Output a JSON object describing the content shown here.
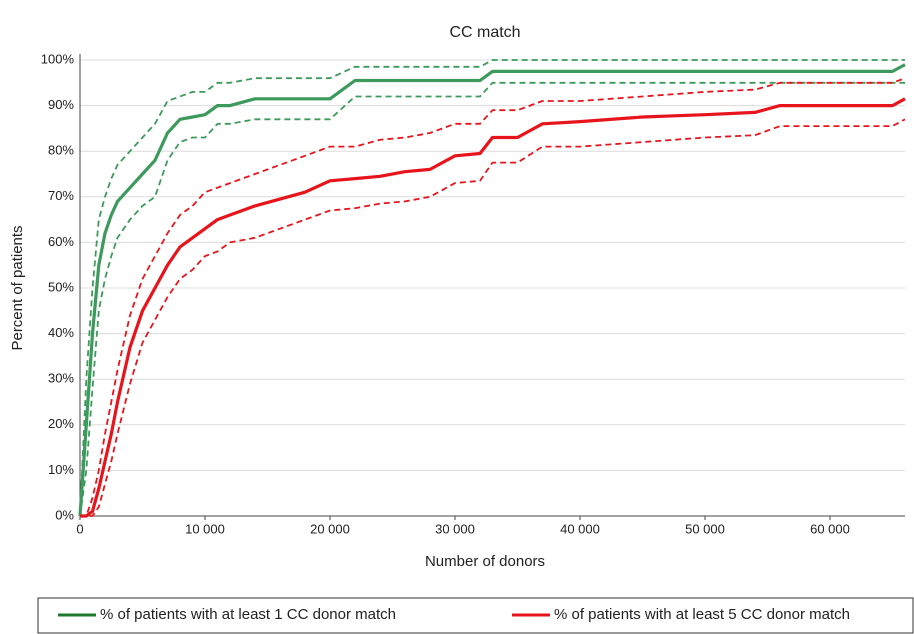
{
  "chart_data": {
    "type": "line",
    "title": "CC match",
    "x_label": "Number of donors",
    "y_label": "Percent of patients",
    "x": [
      0,
      500,
      1000,
      1500,
      2000,
      2500,
      3000,
      4000,
      5000,
      6000,
      7000,
      8000,
      9000,
      10000,
      11000,
      12000,
      14000,
      16000,
      18000,
      20000,
      22000,
      24000,
      26000,
      28000,
      30000,
      32000,
      33000,
      35000,
      37000,
      40000,
      45000,
      50000,
      54000,
      56000,
      60000,
      65000,
      66000
    ],
    "series": [
      {
        "name": "% of patients with at least 1 CC donor match",
        "color": "#3c9a5c",
        "legend_color": "#1f7a2c",
        "values": [
          0,
          20,
          40,
          55,
          62,
          66,
          69,
          72,
          75,
          78,
          84,
          87,
          87.5,
          88,
          90,
          90,
          91.5,
          91.5,
          91.5,
          91.5,
          95.5,
          95.5,
          95.5,
          95.5,
          95.5,
          95.5,
          97.5,
          97.5,
          97.5,
          97.5,
          97.5,
          97.5,
          97.5,
          97.5,
          97.5,
          97.5,
          99
        ],
        "upper": [
          0,
          30,
          50,
          65,
          70,
          74,
          77,
          80,
          83,
          86,
          91,
          92,
          93,
          93,
          95,
          95,
          96,
          96,
          96,
          96,
          98.5,
          98.5,
          98.5,
          98.5,
          98.5,
          98.5,
          100,
          100,
          100,
          100,
          100,
          100,
          100,
          100,
          100,
          100,
          100
        ],
        "lower": [
          0,
          10,
          28,
          45,
          52,
          57,
          61,
          65,
          68,
          70,
          78,
          82,
          83,
          83,
          86,
          86,
          87,
          87,
          87,
          87,
          92,
          92,
          92,
          92,
          92,
          92,
          95,
          95,
          95,
          95,
          95,
          95,
          95,
          95,
          95,
          95,
          95
        ]
      },
      {
        "name": "% of patients with at least 5 CC donor match",
        "color": "#e8141c",
        "legend_color": "#e8141c",
        "values": [
          0,
          0,
          1,
          6,
          12,
          18,
          25,
          37,
          45,
          50,
          55,
          59,
          61,
          63,
          65,
          66,
          68,
          69.5,
          71,
          73.5,
          74,
          74.5,
          75.5,
          76,
          79,
          79.5,
          83,
          83,
          86,
          86.5,
          87.5,
          88,
          88.5,
          90,
          90,
          90,
          91.5
        ],
        "upper": [
          0,
          0,
          4,
          10,
          18,
          25,
          32,
          44,
          52,
          57,
          62,
          66,
          68,
          71,
          72,
          73,
          75,
          77,
          79,
          81,
          81,
          82.5,
          83,
          84,
          86,
          86,
          89,
          89,
          91,
          91,
          92,
          93,
          93.5,
          95,
          95,
          95,
          96
        ],
        "lower": [
          0,
          0,
          0,
          2,
          7,
          12,
          18,
          29,
          38,
          43,
          48,
          52,
          54,
          57,
          58,
          60,
          61,
          63,
          65,
          67,
          67.5,
          68.5,
          69,
          70,
          73,
          73.5,
          77.5,
          77.5,
          81,
          81,
          82,
          83,
          83.5,
          85.5,
          85.5,
          85.5,
          87
        ]
      }
    ],
    "xlim": [
      0,
      66000
    ],
    "xticks": [
      0,
      {
        "value": 10000,
        "label": "10 000"
      },
      {
        "value": 20000,
        "label": "20 000"
      },
      {
        "value": 30000,
        "label": "30 000"
      },
      {
        "value": 40000,
        "label": "40 000"
      },
      {
        "value": 50000,
        "label": "50 000"
      },
      {
        "value": 60000,
        "label": "60 000"
      }
    ],
    "ylim": [
      0,
      100
    ],
    "yticks": [
      {
        "value": 0,
        "label": "0%"
      },
      {
        "value": 10,
        "label": "10%"
      },
      {
        "value": 20,
        "label": "20%"
      },
      {
        "value": 30,
        "label": "30%"
      },
      {
        "value": 40,
        "label": "40%"
      },
      {
        "value": 50,
        "label": "50%"
      },
      {
        "value": 60,
        "label": "60%"
      },
      {
        "value": 70,
        "label": "70%"
      },
      {
        "value": 80,
        "label": "80%"
      },
      {
        "value": 90,
        "label": "90%"
      },
      {
        "value": 100,
        "label": "100%"
      }
    ],
    "grid": true,
    "legend": "bottom"
  }
}
